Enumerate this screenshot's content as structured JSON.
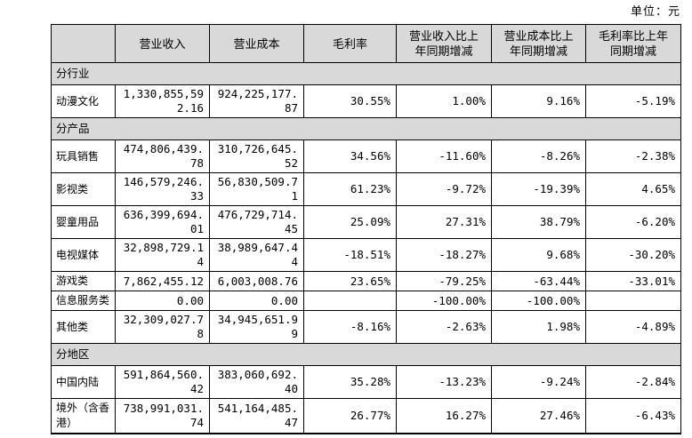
{
  "unit_label": "单位：元",
  "table": {
    "columns": [
      "",
      "营业收入",
      "营业成本",
      "毛利率",
      "营业收入比上年同期增减",
      "营业成本比上年同期增减",
      "毛利率比上年同期增减"
    ],
    "column_keys": [
      "revenue",
      "cost",
      "gross-margin",
      "revenue-yoy-change",
      "cost-yoy-change",
      "margin-yoy-change"
    ],
    "sections": [
      {
        "header": "分行业",
        "rows": [
          {
            "label": "动漫文化",
            "values": [
              "1,330,855,592.16",
              "924,225,177.87",
              "30.55%",
              "1.00%",
              "9.16%",
              "-5.19%"
            ]
          }
        ]
      },
      {
        "header": "分产品",
        "rows": [
          {
            "label": "玩具销售",
            "values": [
              "474,806,439.78",
              "310,726,645.52",
              "34.56%",
              "-11.60%",
              "-8.26%",
              "-2.38%"
            ]
          },
          {
            "label": "影视类",
            "values": [
              "146,579,246.33",
              "56,830,509.71",
              "61.23%",
              "-9.72%",
              "-19.39%",
              "4.65%"
            ]
          },
          {
            "label": "婴童用品",
            "values": [
              "636,399,694.01",
              "476,729,714.45",
              "25.09%",
              "27.31%",
              "38.79%",
              "-6.20%"
            ]
          },
          {
            "label": "电视媒体",
            "values": [
              "32,898,729.14",
              "38,989,647.44",
              "-18.51%",
              "-18.27%",
              "9.68%",
              "-30.20%"
            ]
          },
          {
            "label": "游戏类",
            "values": [
              "7,862,455.12",
              "6,003,008.76",
              "23.65%",
              "-79.25%",
              "-63.44%",
              "-33.01%"
            ]
          },
          {
            "label": "信息服务类",
            "values": [
              "0.00",
              "0.00",
              "",
              "-100.00%",
              "-100.00%",
              ""
            ]
          },
          {
            "label": "其他类",
            "values": [
              "32,309,027.78",
              "34,945,651.99",
              "-8.16%",
              "-2.63%",
              "1.98%",
              "-4.89%"
            ]
          }
        ]
      },
      {
        "header": "分地区",
        "rows": [
          {
            "label": "中国内陆",
            "values": [
              "591,864,560.42",
              "383,060,692.40",
              "35.28%",
              "-13.23%",
              "-9.24%",
              "-2.84%"
            ]
          },
          {
            "label": "境外（含香港）",
            "values": [
              "738,991,031.74",
              "541,164,485.47",
              "26.77%",
              "16.27%",
              "27.46%",
              "-6.43%"
            ]
          }
        ]
      }
    ]
  },
  "colors": {
    "header_bg": "#d9d9d9",
    "section_bg": "#d9d9d9",
    "border": "#000000",
    "text": "#000000",
    "page_bg": "#ffffff"
  }
}
